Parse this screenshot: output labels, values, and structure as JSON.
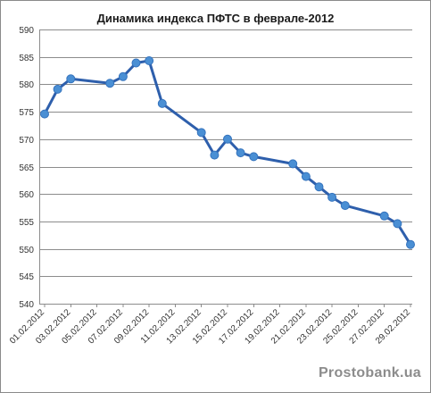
{
  "chart_data": {
    "type": "line",
    "title": "Динамика индекса ПФТС в феврале-2012",
    "xlabel": "",
    "ylabel": "",
    "ylim": [
      540,
      590
    ],
    "yticks": [
      540,
      545,
      550,
      555,
      560,
      565,
      570,
      575,
      580,
      585,
      590
    ],
    "grid": true,
    "legend": "none",
    "x_tick_labels": [
      "01.02.2012",
      "03.02.2012",
      "05.02.2012",
      "07.02.2012",
      "09.02.2012",
      "11.02.2012",
      "13.02.2012",
      "15.02.2012",
      "17.02.2012",
      "19.02.2012",
      "21.02.2012",
      "23.02.2012",
      "25.02.2012",
      "27.02.2012",
      "29.02.2012"
    ],
    "series": [
      {
        "color": "#2e5fac",
        "marker_color": "#4a8fd4",
        "points": [
          {
            "x": "01.02.2012",
            "y": 574.6
          },
          {
            "x": "02.02.2012",
            "y": 579.1
          },
          {
            "x": "03.02.2012",
            "y": 581.0
          },
          {
            "x": "06.02.2012",
            "y": 580.2
          },
          {
            "x": "07.02.2012",
            "y": 581.4
          },
          {
            "x": "08.02.2012",
            "y": 583.9
          },
          {
            "x": "09.02.2012",
            "y": 584.3
          },
          {
            "x": "10.02.2012",
            "y": 576.5
          },
          {
            "x": "13.02.2012",
            "y": 571.2
          },
          {
            "x": "14.02.2012",
            "y": 567.1
          },
          {
            "x": "15.02.2012",
            "y": 570.0
          },
          {
            "x": "16.02.2012",
            "y": 567.5
          },
          {
            "x": "17.02.2012",
            "y": 566.8
          },
          {
            "x": "20.02.2012",
            "y": 565.5
          },
          {
            "x": "21.02.2012",
            "y": 563.2
          },
          {
            "x": "22.02.2012",
            "y": 561.3
          },
          {
            "x": "23.02.2012",
            "y": 559.4
          },
          {
            "x": "24.02.2012",
            "y": 557.9
          },
          {
            "x": "27.02.2012",
            "y": 556.0
          },
          {
            "x": "28.02.2012",
            "y": 554.6
          },
          {
            "x": "29.02.2012",
            "y": 550.8
          }
        ]
      }
    ]
  },
  "watermark": "Prostobank.ua"
}
